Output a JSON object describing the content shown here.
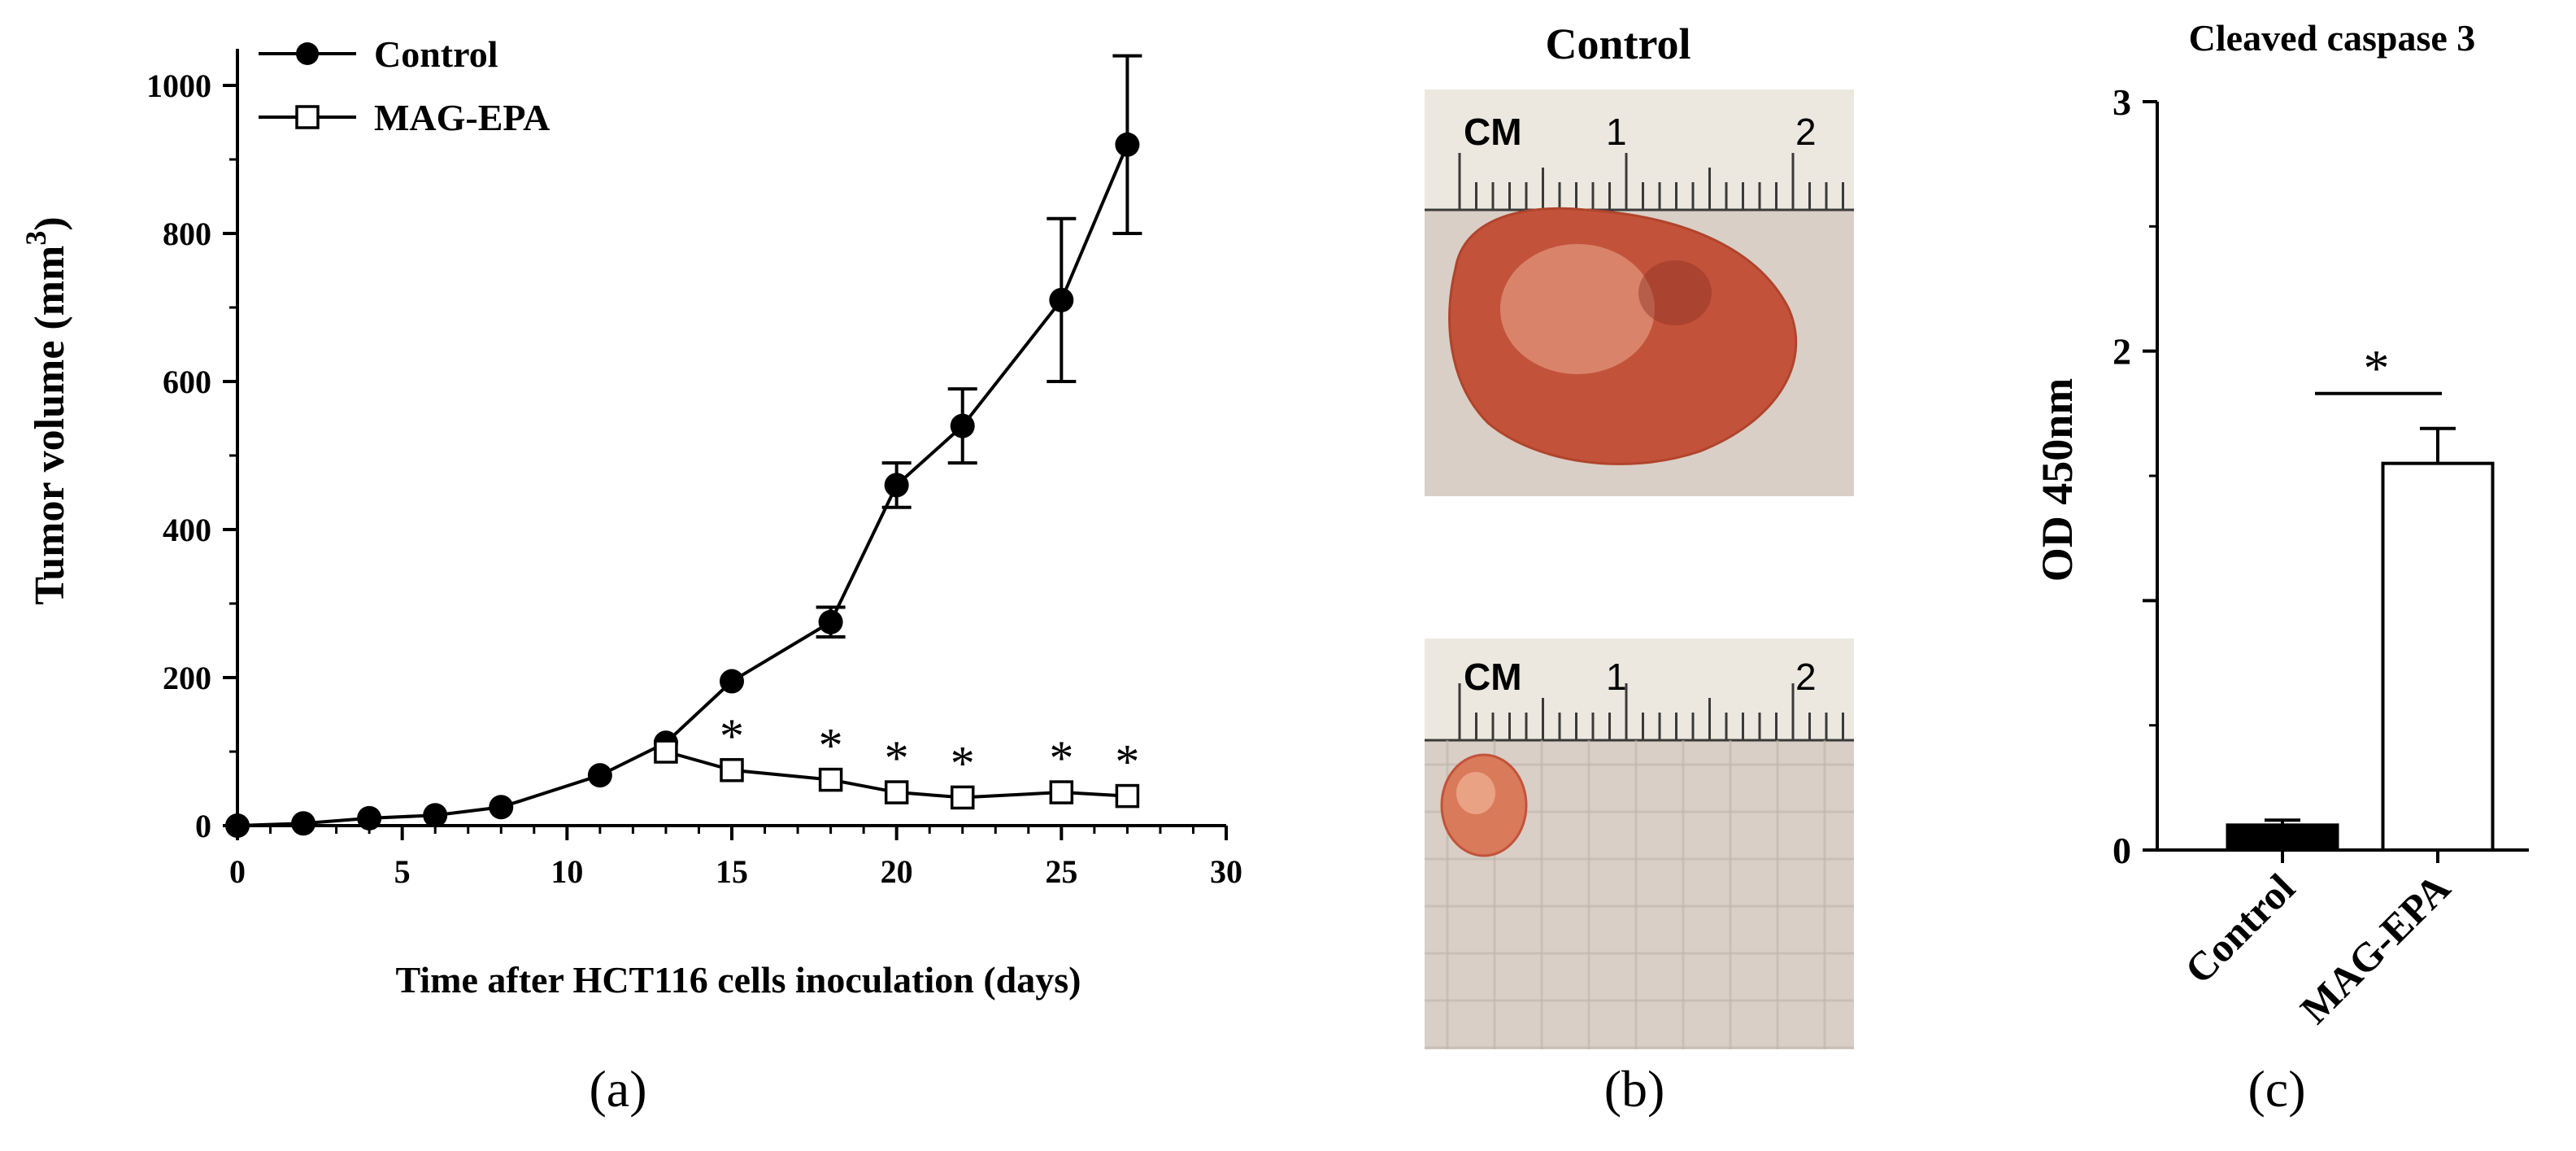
{
  "panels": {
    "a": {
      "label": "(a)"
    },
    "b": {
      "label": "(b)",
      "title": "Control",
      "ruler_unit": "CM",
      "ruler_tick_1": "1",
      "ruler_tick_2": "2"
    },
    "c": {
      "label": "(c)"
    }
  },
  "colors": {
    "axis": "#000000",
    "tumor_dark": "#c2533a",
    "tumor_light": "#e8a58a",
    "background_cloth": "#d9cfc6",
    "ruler": "#ece8df"
  },
  "chart_data": [
    {
      "id": "tumor-volume",
      "type": "line",
      "title": "",
      "xlabel": "Time after HCT116 cells inoculation (days)",
      "ylabel": "Tumor volume (mm",
      "ylabel_superscript": "3",
      "ylabel_close": ")",
      "xlim": [
        0,
        30
      ],
      "ylim": [
        0,
        1000
      ],
      "xticks": [
        0,
        5,
        10,
        15,
        20,
        25,
        30
      ],
      "yticks": [
        0,
        200,
        400,
        600,
        800,
        1000
      ],
      "grid": false,
      "legend_position": "top-left",
      "significance_marker": "*",
      "series": [
        {
          "name": "Control",
          "marker": "filled-circle",
          "x": [
            0,
            2,
            4,
            6,
            8,
            11,
            13,
            15,
            18,
            20,
            22,
            25,
            27
          ],
          "y": [
            0,
            3,
            10,
            14,
            25,
            68,
            112,
            195,
            275,
            460,
            540,
            710,
            920
          ],
          "err": [
            0,
            0,
            0,
            0,
            0,
            0,
            0,
            0,
            20,
            30,
            50,
            110,
            120
          ]
        },
        {
          "name": "MAG-EPA",
          "marker": "open-square",
          "x": [
            13,
            15,
            18,
            20,
            22,
            25,
            27
          ],
          "y": [
            100,
            75,
            62,
            45,
            38,
            45,
            40
          ],
          "err": [
            0,
            0,
            0,
            0,
            0,
            0,
            0
          ],
          "significant": [
            false,
            true,
            true,
            true,
            true,
            true,
            true
          ]
        }
      ]
    },
    {
      "id": "cleaved-caspase",
      "type": "bar",
      "title": "Cleaved caspase 3",
      "xlabel": "",
      "ylabel": "OD 450nm",
      "categories": [
        "Control",
        "MAG-EPA"
      ],
      "values": [
        0.1,
        1.55
      ],
      "err": [
        0.02,
        0.14
      ],
      "fills": [
        "#000000",
        "#ffffff"
      ],
      "ylim": [
        0,
        3
      ],
      "yticks": [
        0,
        1,
        2,
        3
      ],
      "ytick_labels": [
        "0",
        "",
        "2",
        "3"
      ],
      "grid": false,
      "significance_marker": "*"
    }
  ]
}
